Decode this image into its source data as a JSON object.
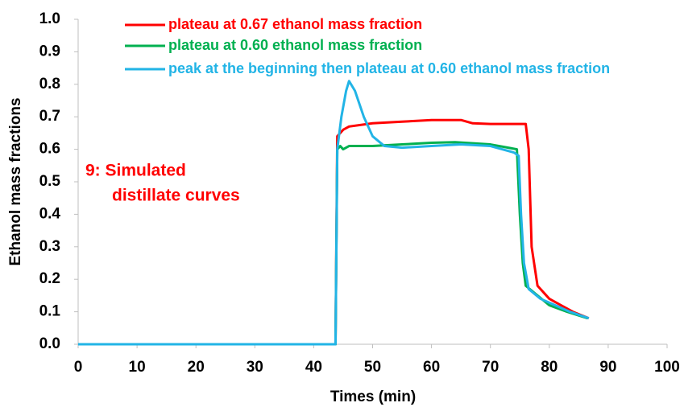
{
  "chart_data": {
    "type": "line",
    "xlabel": "Times (min)",
    "ylabel": "Ethanol mass fractions",
    "annotation": [
      "9: Simulated",
      "distillate curves"
    ],
    "annotation_color": "#ff0000",
    "xlim": [
      0,
      100
    ],
    "xticks": [
      0,
      10,
      20,
      30,
      40,
      50,
      60,
      70,
      80,
      90,
      100
    ],
    "ylim": [
      0,
      1
    ],
    "yticks": [
      {
        "value": 0,
        "label": "0.0"
      },
      0.1,
      0.2,
      0.3,
      0.4,
      0.5,
      0.6,
      0.7,
      0.8,
      0.9,
      {
        "value": 1,
        "label": "1.0"
      }
    ],
    "legend": "upper left",
    "series": [
      {
        "name": "plateau at 0.67 ethanol mass fraction",
        "color": "#ff0000",
        "x": [
          0,
          43.7,
          44,
          44.5,
          45,
          46,
          50,
          55,
          60,
          65,
          67,
          70,
          76,
          76.5,
          77,
          78,
          80,
          82,
          84,
          86.7
        ],
        "values": [
          0,
          0,
          0.64,
          0.65,
          0.66,
          0.67,
          0.68,
          0.685,
          0.69,
          0.69,
          0.68,
          0.678,
          0.678,
          0.6,
          0.3,
          0.18,
          0.14,
          0.12,
          0.1,
          0.08
        ]
      },
      {
        "name": "plateau at 0.60  ethanol mass fraction",
        "color": "#00b050",
        "x": [
          0,
          43.7,
          44,
          44.5,
          45,
          46,
          50,
          55,
          60,
          64,
          70,
          74.5,
          75,
          75.5,
          76,
          78,
          80,
          83,
          86.5
        ],
        "values": [
          0,
          0,
          0.6,
          0.61,
          0.6,
          0.61,
          0.61,
          0.615,
          0.62,
          0.622,
          0.615,
          0.6,
          0.4,
          0.25,
          0.18,
          0.15,
          0.12,
          0.1,
          0.08
        ]
      },
      {
        "name": "peak at the beginning then plateau at 0.60  ethanol mass fraction",
        "color": "#22b4e6",
        "x": [
          0,
          43.7,
          44,
          44.7,
          45.5,
          46,
          47,
          48.5,
          50,
          52,
          55,
          60,
          65,
          70,
          74,
          74.8,
          75.2,
          75.7,
          76.5,
          78.5,
          81,
          83.5,
          86.7
        ],
        "values": [
          0,
          0,
          0.6,
          0.7,
          0.78,
          0.81,
          0.78,
          0.7,
          0.64,
          0.61,
          0.605,
          0.61,
          0.615,
          0.61,
          0.59,
          0.58,
          0.4,
          0.25,
          0.17,
          0.14,
          0.12,
          0.1,
          0.08
        ]
      }
    ]
  }
}
